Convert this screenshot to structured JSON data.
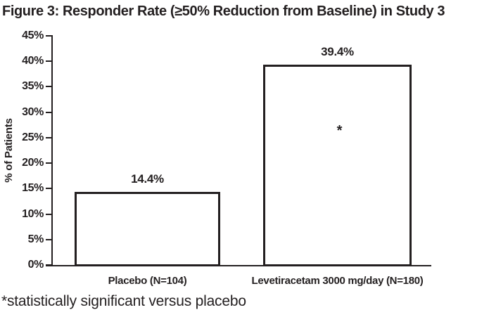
{
  "title": "Figure 3: Responder Rate (≥50% Reduction from Baseline) in Study 3",
  "footnote": "*statistically significant versus placebo",
  "colors": {
    "ink": "#231f20",
    "background": "#ffffff",
    "bar_fill": "#ffffff",
    "bar_border": "#231f20"
  },
  "chart_data": {
    "type": "bar",
    "title": "Figure 3: Responder Rate (≥50% Reduction from Baseline) in Study 3",
    "xlabel": "",
    "ylabel": "% of Patients",
    "categories": [
      "Placebo (N=104)",
      "Levetiracetam 3000 mg/day (N=180)"
    ],
    "values": [
      14.4,
      39.4
    ],
    "value_labels": [
      "14.4%",
      "39.4%"
    ],
    "annotations": [
      {
        "bar_index": 1,
        "text": "*"
      }
    ],
    "ylim": [
      0,
      45
    ],
    "ytick_step": 5,
    "ytick_labels": [
      "0%",
      "5%",
      "10%",
      "15%",
      "20%",
      "25%",
      "30%",
      "35%",
      "40%",
      "45%"
    ],
    "grid": false,
    "legend": false,
    "bar_style": "outlined-white"
  }
}
